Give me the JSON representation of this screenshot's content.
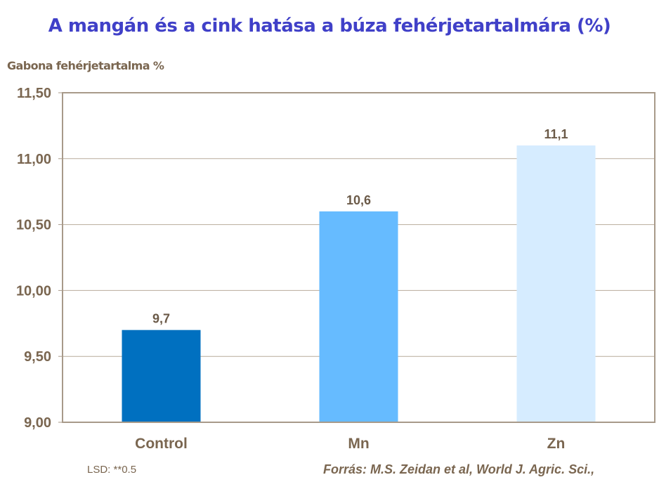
{
  "chart_data": {
    "type": "bar",
    "title": "A mangán és a cink hatása a búza fehérjetartalmára (%)",
    "ylabel": "Gabona fehérjetartalma %",
    "xlabel": "",
    "categories": [
      "Control",
      "Mn",
      "Zn"
    ],
    "values": [
      9.7,
      10.6,
      11.1
    ],
    "data_labels": [
      "9,7",
      "10,6",
      "11,1"
    ],
    "bar_colors": [
      "#0070c0",
      "#66bbff",
      "#d6ecff"
    ],
    "ylim": [
      9.0,
      11.5
    ],
    "yticks": [
      9.0,
      9.5,
      10.0,
      10.5,
      11.0,
      11.5
    ],
    "ytick_labels": [
      "9,00",
      "9,50",
      "10,00",
      "10,50",
      "11,00",
      "11,50"
    ],
    "grid": true,
    "legend": "none"
  },
  "notes": {
    "lsd": "LSD: **0.5",
    "source": "Forrás: M.S. Zeidan et al, World J. Agric. Sci.,"
  }
}
